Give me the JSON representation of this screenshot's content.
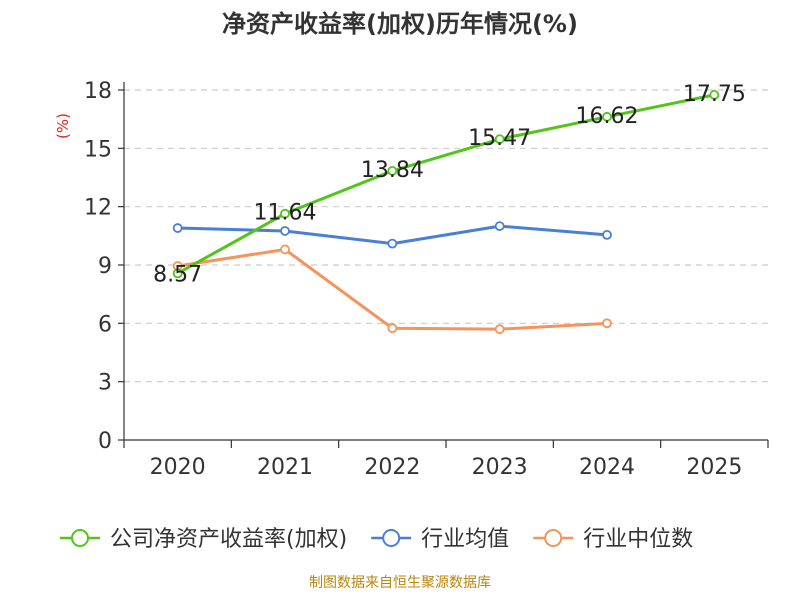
{
  "chart_data": {
    "type": "line",
    "title": "净资产收益率(加权)历年情况(%)",
    "ylabel": "(%)",
    "xlabel": "",
    "categories": [
      "2020",
      "2021",
      "2022",
      "2023",
      "2024",
      "2025"
    ],
    "ylim": [
      0,
      18
    ],
    "yticks": [
      0,
      3,
      6,
      9,
      12,
      15,
      18
    ],
    "grid": true,
    "legend_position": "bottom",
    "series": [
      {
        "name": "公司净资产收益率(加权)",
        "color": "#52c41a",
        "values": [
          8.57,
          11.64,
          13.84,
          15.47,
          16.62,
          17.75
        ],
        "show_labels": true
      },
      {
        "name": "行业均值",
        "color": "#4a7fd8",
        "values": [
          10.9,
          10.75,
          10.1,
          11.0,
          10.55,
          null
        ],
        "show_labels": false
      },
      {
        "name": "行业中位数",
        "color": "#f4935a",
        "values": [
          8.95,
          9.8,
          5.75,
          5.7,
          6.0,
          null
        ],
        "show_labels": false
      }
    ]
  },
  "source_note": "制图数据来自恒生聚源数据库"
}
